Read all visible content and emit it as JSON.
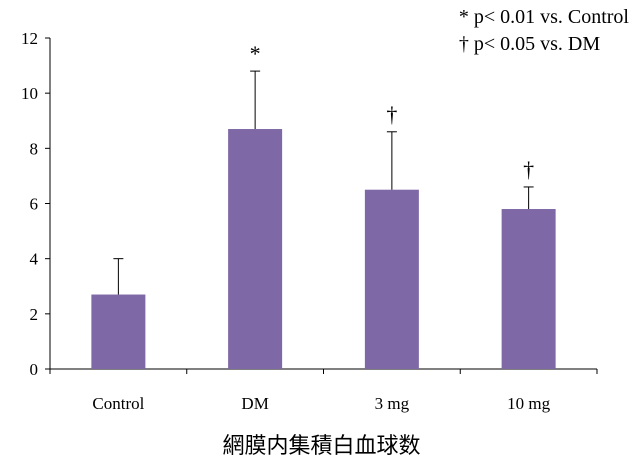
{
  "chart_data": {
    "type": "bar",
    "categories": [
      "Control",
      "DM",
      "3 mg",
      "10 mg"
    ],
    "values": [
      2.7,
      8.7,
      6.5,
      5.8
    ],
    "errors": [
      1.3,
      2.1,
      2.1,
      0.8
    ],
    "markers": [
      "",
      "*",
      "†",
      "†"
    ],
    "xlabel": "網膜内集積白血球数",
    "ylabel": "",
    "ylim": [
      0,
      12
    ],
    "yticks": [
      0,
      2,
      4,
      6,
      8,
      10,
      12
    ],
    "bar_color": "#7E68A6",
    "grid": false,
    "legend": {
      "position": "top-right",
      "entries": [
        "* p< 0.01 vs. Control",
        "† p< 0.05 vs. DM"
      ]
    }
  }
}
